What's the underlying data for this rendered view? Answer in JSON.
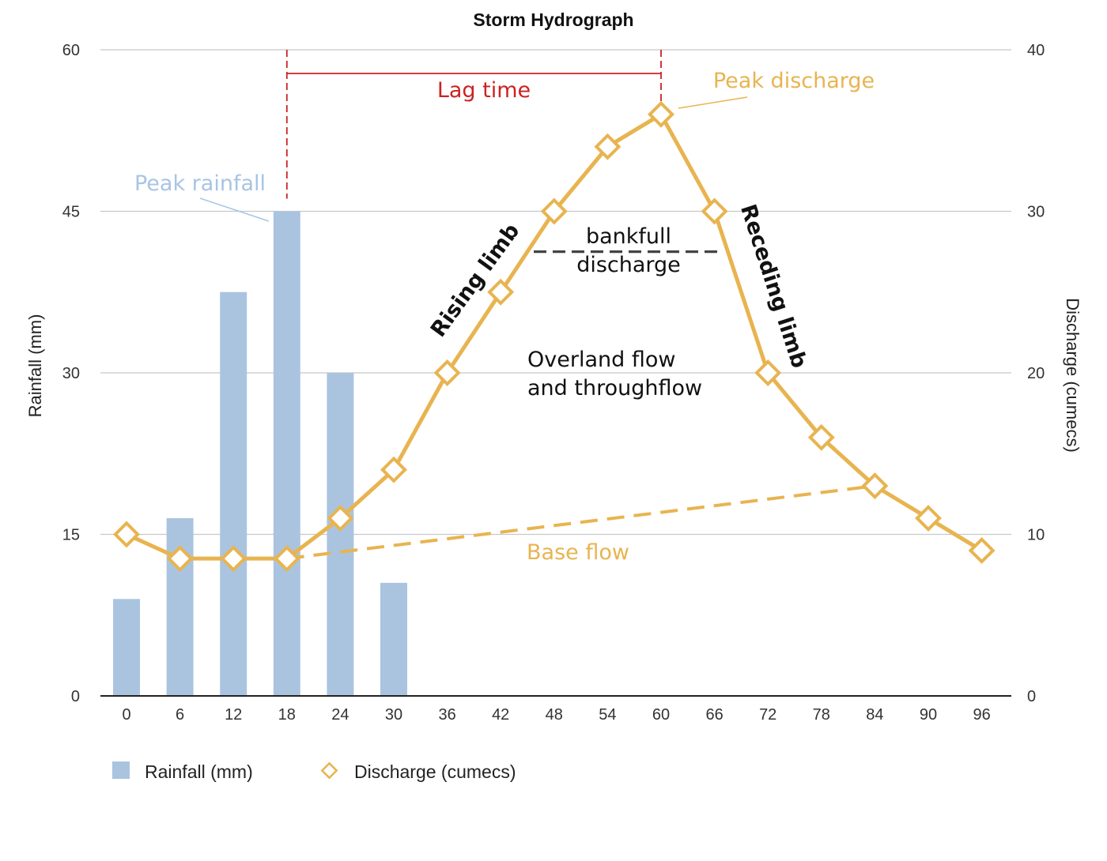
{
  "chart_data": {
    "type": "bar+line",
    "title": "Storm Hydrograph",
    "categories": [
      "0",
      "6",
      "12",
      "18",
      "24",
      "30",
      "36",
      "42",
      "48",
      "54",
      "60",
      "66",
      "72",
      "78",
      "84",
      "90",
      "96"
    ],
    "series": [
      {
        "name": "Rainfall (mm)",
        "type": "bar",
        "axis": "left",
        "values": [
          9,
          16.5,
          37.5,
          45,
          30,
          10.5,
          null,
          null,
          null,
          null,
          null,
          null,
          null,
          null,
          null,
          null,
          null
        ],
        "color": "#aac4e0"
      },
      {
        "name": "Discharge (cumecs)",
        "type": "line",
        "axis": "right",
        "values": [
          10,
          8.5,
          8.5,
          8.5,
          11,
          14,
          20,
          25,
          30,
          34,
          36,
          30,
          20,
          16,
          13,
          11,
          9
        ],
        "color": "#e8b450"
      }
    ],
    "ylabel": "Rainfall (mm)",
    "ylabel_right": "Discharge (cumecs)",
    "ylim": [
      0,
      60
    ],
    "ylim_right": [
      0,
      40
    ],
    "yticks": [
      "0",
      "15",
      "30",
      "45",
      "60"
    ],
    "yticks_right": [
      "0",
      "10",
      "20",
      "30",
      "40"
    ],
    "grid": true,
    "legend_position": "bottom-left",
    "annotations": {
      "lag_time": "Lag time",
      "peak_discharge": "Peak discharge",
      "peak_rainfall": "Peak rainfall",
      "rising_limb": "Rising limb",
      "receding_limb": "Receding limb",
      "bankfull_line1": "bankfull",
      "bankfull_line2": "discharge",
      "overland_line1": "Overland flow",
      "overland_line2": "and throughflow",
      "base_flow": "Base flow"
    },
    "base_flow_from": {
      "x": "18",
      "discharge": 8.5
    },
    "base_flow_to": {
      "x": "84",
      "discharge": 13
    },
    "bankfull_discharge": 27.5,
    "colors": {
      "lag": "#cc2222",
      "rain_label": "#a8c4e4",
      "discharge_label": "#e8b450",
      "grid": "#c8c8c8",
      "axis": "#222222",
      "bankfull": "#444444"
    }
  }
}
